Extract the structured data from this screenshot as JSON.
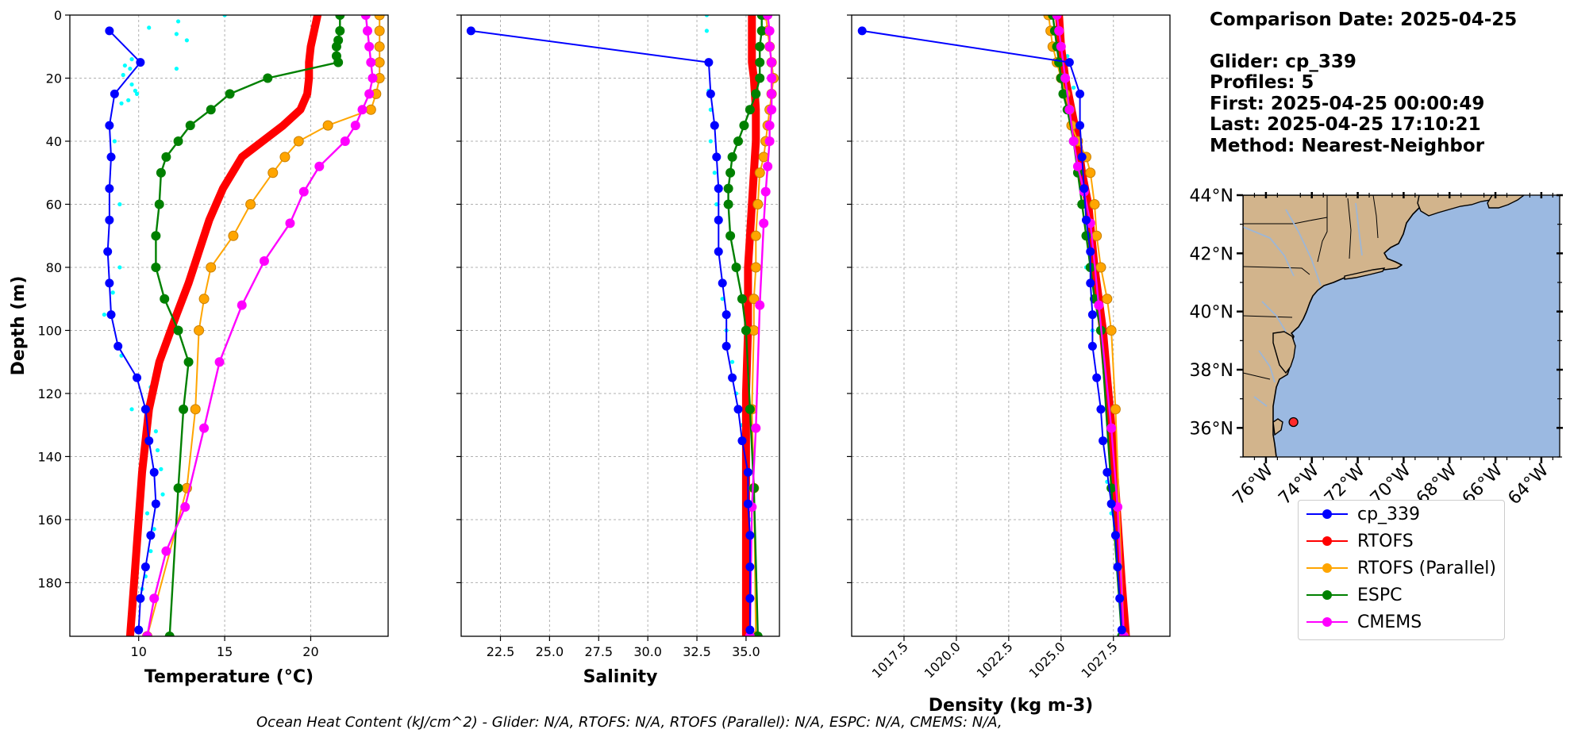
{
  "info": {
    "comparison_date": "Comparison Date: 2025-04-25",
    "glider": "Glider: cp_339",
    "profiles": "Profiles: 5",
    "first": "First: 2025-04-25 00:00:49",
    "last": "Last: 2025-04-25 17:10:21",
    "method": "Method: Nearest-Neighbor"
  },
  "footer": "Ocean Heat Content (kJ/cm^2) - Glider: N/A,  RTOFS: N/A,  RTOFS (Parallel): N/A,  ESPC: N/A,  CMEMS: N/A,",
  "colors": {
    "glider": "#0000ff",
    "glider_raw": "#00ffff",
    "rtofs": "#ff0000",
    "rtofs_parallel": "#ffa500",
    "espc": "#008000",
    "cmems": "#ff00ff",
    "land": "#d2b48c",
    "ocean": "#9bb9e1",
    "rivers": "#9db6d6"
  },
  "legend": [
    {
      "label": "cp_339",
      "color": "#0000ff"
    },
    {
      "label": "RTOFS",
      "color": "#ff0000"
    },
    {
      "label": "RTOFS (Parallel)",
      "color": "#ffa500"
    },
    {
      "label": "ESPC",
      "color": "#008000"
    },
    {
      "label": "CMEMS",
      "color": "#ff00ff"
    }
  ],
  "map": {
    "lon_ticks": [
      "76°W",
      "74°W",
      "72°W",
      "70°W",
      "68°W",
      "66°W",
      "64°W"
    ],
    "lat_ticks": [
      "44°N",
      "42°N",
      "40°N",
      "38°N",
      "36°N"
    ],
    "glider_location": {
      "lon": -74.8,
      "lat": 36.2
    }
  },
  "chart_data": [
    {
      "type": "line",
      "xlabel": "Temperature (°C)",
      "ylabel": "Depth (m)",
      "xlim": [
        6,
        24.5
      ],
      "ylim": [
        197,
        0
      ],
      "y_inverted": true,
      "grid": true,
      "xticks": [
        10,
        15,
        20
      ],
      "yticks": [
        0,
        20,
        40,
        60,
        80,
        100,
        120,
        140,
        160,
        180
      ],
      "series": [
        {
          "name": "cp_339",
          "x": [
            8.3,
            10.1,
            8.6,
            8.3,
            8.4,
            8.3,
            8.3,
            8.2,
            8.3,
            8.4,
            8.8,
            9.9,
            10.4,
            10.6,
            10.9,
            11.0,
            10.7,
            10.4,
            10.1,
            10.0
          ],
          "y": [
            5,
            15,
            25,
            35,
            45,
            55,
            65,
            75,
            85,
            95,
            105,
            115,
            125,
            135,
            145,
            155,
            165,
            175,
            185,
            195
          ]
        },
        {
          "name": "RTOFS",
          "x": [
            20.4,
            20.2,
            20.0,
            19.9,
            19.9,
            19.8,
            19.4,
            18.4,
            17.2,
            16.0,
            14.9,
            14.1,
            13.5,
            12.9,
            12.2,
            11.2,
            10.6,
            10.2,
            10.0,
            9.8,
            9.6,
            9.5
          ],
          "y": [
            0,
            5,
            10,
            15,
            20,
            25,
            30,
            35,
            40,
            45,
            55,
            65,
            75,
            85,
            95,
            110,
            125,
            145,
            160,
            175,
            190,
            197
          ]
        },
        {
          "name": "RTOFS (Parallel)",
          "x": [
            24.0,
            24.0,
            24.0,
            24.0,
            24.0,
            23.8,
            23.5,
            21.0,
            19.3,
            18.5,
            17.8,
            16.5,
            15.5,
            14.2,
            13.8,
            13.5,
            13.3,
            12.8,
            10.5
          ],
          "y": [
            0,
            5,
            10,
            15,
            20,
            25,
            30,
            35,
            40,
            45,
            50,
            60,
            70,
            80,
            90,
            100,
            125,
            150,
            197
          ]
        },
        {
          "name": "ESPC",
          "x": [
            21.7,
            21.7,
            21.6,
            21.5,
            21.5,
            21.6,
            17.5,
            15.3,
            14.2,
            13.0,
            12.3,
            11.6,
            11.3,
            11.2,
            11.0,
            11.0,
            11.5,
            12.3,
            12.9,
            12.6,
            12.3,
            11.8
          ],
          "y": [
            0,
            5,
            8,
            10,
            13,
            15,
            20,
            25,
            30,
            35,
            40,
            45,
            50,
            60,
            70,
            80,
            90,
            100,
            110,
            125,
            150,
            197
          ]
        },
        {
          "name": "CMEMS",
          "x": [
            23.2,
            23.3,
            23.4,
            23.5,
            23.6,
            23.4,
            23.0,
            22.6,
            22.0,
            20.5,
            19.6,
            18.8,
            17.3,
            16.0,
            14.7,
            13.8,
            12.7,
            11.6,
            10.9,
            10.5
          ],
          "y": [
            0,
            5,
            10,
            15,
            20,
            25,
            30,
            35,
            40,
            48,
            56,
            66,
            78,
            92,
            110,
            131,
            156,
            170,
            185,
            197
          ]
        },
        {
          "name": "cp_339 raw",
          "x": [
            15.0,
            12.3,
            15.0,
            12.2,
            12.8,
            10.6,
            9.6,
            9.2,
            12.2,
            9.5,
            9.1,
            9.6,
            9.8,
            9.4,
            9.9,
            9.0,
            8.6,
            8.9,
            8.9,
            8.5,
            8.0,
            9.0,
            10.7,
            9.6,
            11.0,
            11.1,
            11.3,
            11.4,
            10.5,
            10.9,
            10.7,
            10.4,
            10.2
          ],
          "y": [
            0,
            2,
            0,
            6,
            8,
            4,
            14,
            16,
            17,
            17,
            19,
            22,
            24,
            27,
            25,
            28,
            40,
            60,
            80,
            88,
            95,
            108,
            118,
            125,
            132,
            138,
            144,
            152,
            158,
            163,
            170,
            178,
            182
          ]
        }
      ]
    },
    {
      "type": "line",
      "xlabel": "Salinity",
      "xlim": [
        20.5,
        36.7
      ],
      "ylim": [
        197,
        0
      ],
      "y_inverted": true,
      "grid": true,
      "xticks": [
        22.5,
        25.0,
        27.5,
        30.0,
        32.5,
        35.0
      ],
      "xtick_labels": [
        "22.5",
        "25.0",
        "27.5",
        "30.0",
        "32.5",
        "35.0"
      ],
      "yticks": [
        0,
        20,
        40,
        60,
        80,
        100,
        120,
        140,
        160,
        180
      ],
      "series": [
        {
          "name": "cp_339",
          "x": [
            21.0,
            33.1,
            33.2,
            33.4,
            33.5,
            33.6,
            33.6,
            33.6,
            33.8,
            34.0,
            34.0,
            34.3,
            34.6,
            34.8,
            35.1,
            35.1,
            35.2,
            35.2,
            35.2,
            35.2
          ],
          "y": [
            5,
            15,
            25,
            35,
            45,
            55,
            65,
            75,
            85,
            95,
            105,
            115,
            125,
            135,
            145,
            155,
            165,
            175,
            185,
            195
          ]
        },
        {
          "name": "RTOFS",
          "x": [
            35.3,
            35.3,
            35.3,
            35.3,
            35.4,
            35.5,
            35.5,
            35.4,
            35.3,
            35.2,
            35.1,
            35.1,
            35.0,
            35.0,
            35.0,
            35.0,
            35.0
          ],
          "y": [
            0,
            5,
            10,
            15,
            20,
            30,
            40,
            50,
            60,
            70,
            80,
            100,
            120,
            140,
            160,
            180,
            197
          ]
        },
        {
          "name": "RTOFS (Parallel)",
          "x": [
            36.0,
            36.1,
            36.2,
            36.3,
            36.4,
            36.3,
            36.2,
            36.1,
            36.0,
            35.9,
            35.7,
            35.6,
            35.5,
            35.5,
            35.4,
            35.4,
            35.3,
            35.4,
            35.5
          ],
          "y": [
            0,
            5,
            10,
            15,
            20,
            25,
            30,
            35,
            40,
            45,
            50,
            60,
            70,
            80,
            90,
            100,
            125,
            150,
            197
          ]
        },
        {
          "name": "ESPC",
          "x": [
            35.8,
            35.8,
            35.7,
            35.7,
            35.7,
            35.5,
            35.2,
            34.9,
            34.6,
            34.3,
            34.2,
            34.1,
            34.1,
            34.2,
            34.5,
            34.8,
            35.0,
            35.2,
            35.4,
            35.6
          ],
          "y": [
            0,
            5,
            10,
            15,
            20,
            25,
            30,
            35,
            40,
            45,
            50,
            55,
            60,
            70,
            80,
            90,
            100,
            125,
            150,
            197
          ]
        },
        {
          "name": "CMEMS",
          "x": [
            36.1,
            36.2,
            36.2,
            36.3,
            36.3,
            36.3,
            36.3,
            36.2,
            36.2,
            36.1,
            36.0,
            35.9,
            35.7,
            35.5,
            35.3,
            35.2
          ],
          "y": [
            0,
            5,
            10,
            15,
            20,
            25,
            30,
            35,
            40,
            48,
            56,
            66,
            92,
            131,
            156,
            197
          ]
        },
        {
          "name": "cp_339 raw",
          "x": [
            33.0,
            33.0,
            33.1,
            33.2,
            33.2,
            33.4,
            33.5,
            33.6,
            33.8,
            34.0,
            34.3,
            34.5,
            34.8,
            35.0,
            35.2
          ],
          "y": [
            0,
            5,
            24,
            30,
            40,
            50,
            60,
            75,
            90,
            100,
            110,
            120,
            130,
            145,
            160
          ]
        }
      ]
    },
    {
      "type": "line",
      "xlabel": "Density (kg m-3)",
      "xlim": [
        1015.0,
        1030.2
      ],
      "ylim": [
        197,
        0
      ],
      "y_inverted": true,
      "grid": true,
      "xticks": [
        1017.5,
        1020.0,
        1022.5,
        1025.0,
        1027.5
      ],
      "xtick_labels": [
        "1017.5",
        "1020.0",
        "1022.5",
        "1025.0",
        "1027.5"
      ],
      "yticks": [
        0,
        20,
        40,
        60,
        80,
        100,
        120,
        140,
        160,
        180
      ],
      "series": [
        {
          "name": "cp_339",
          "x": [
            1015.5,
            1025.4,
            1025.9,
            1025.9,
            1026.0,
            1026.1,
            1026.2,
            1026.4,
            1026.4,
            1026.5,
            1026.5,
            1026.7,
            1026.9,
            1027.0,
            1027.2,
            1027.4,
            1027.6,
            1027.7,
            1027.8,
            1027.9
          ],
          "y": [
            5,
            15,
            25,
            35,
            45,
            55,
            65,
            75,
            85,
            95,
            105,
            115,
            125,
            135,
            145,
            155,
            165,
            175,
            185,
            195
          ]
        },
        {
          "name": "RTOFS",
          "x": [
            1024.9,
            1025.0,
            1025.2,
            1025.5,
            1025.8,
            1026.0,
            1026.3,
            1026.6,
            1027.0,
            1027.4,
            1027.7,
            1027.9,
            1028.1
          ],
          "y": [
            0,
            10,
            20,
            30,
            40,
            50,
            60,
            80,
            100,
            130,
            160,
            180,
            197
          ]
        },
        {
          "name": "RTOFS (Parallel)",
          "x": [
            1024.4,
            1024.5,
            1024.6,
            1024.8,
            1025.0,
            1025.2,
            1025.4,
            1025.5,
            1025.8,
            1026.2,
            1026.4,
            1026.6,
            1026.7,
            1026.9,
            1027.2,
            1027.4,
            1027.6,
            1028.0
          ],
          "y": [
            0,
            5,
            10,
            15,
            20,
            25,
            30,
            35,
            40,
            45,
            50,
            60,
            70,
            80,
            90,
            100,
            125,
            197
          ]
        },
        {
          "name": "ESPC",
          "x": [
            1024.6,
            1024.7,
            1024.8,
            1024.9,
            1025.0,
            1025.1,
            1025.3,
            1025.6,
            1025.8,
            1026.0,
            1026.2,
            1026.4,
            1026.6,
            1026.9,
            1027.4,
            1027.9
          ],
          "y": [
            0,
            5,
            10,
            15,
            20,
            25,
            30,
            40,
            50,
            60,
            70,
            80,
            90,
            100,
            150,
            197
          ]
        },
        {
          "name": "CMEMS",
          "x": [
            1024.8,
            1024.9,
            1025.0,
            1025.2,
            1025.4,
            1025.6,
            1025.8,
            1026.1,
            1026.4,
            1026.8,
            1027.4,
            1027.7,
            1028.0
          ],
          "y": [
            0,
            5,
            10,
            20,
            30,
            40,
            48,
            56,
            66,
            92,
            131,
            156,
            197
          ]
        },
        {
          "name": "cp_339 raw",
          "x": [
            1025.0,
            1025.0,
            1025.3,
            1025.6,
            1025.8,
            1026.0,
            1026.2,
            1026.5,
            1026.8,
            1027.2,
            1027.4
          ],
          "y": [
            3,
            6,
            13,
            23,
            40,
            60,
            80,
            100,
            125,
            148,
            158
          ]
        }
      ]
    }
  ]
}
